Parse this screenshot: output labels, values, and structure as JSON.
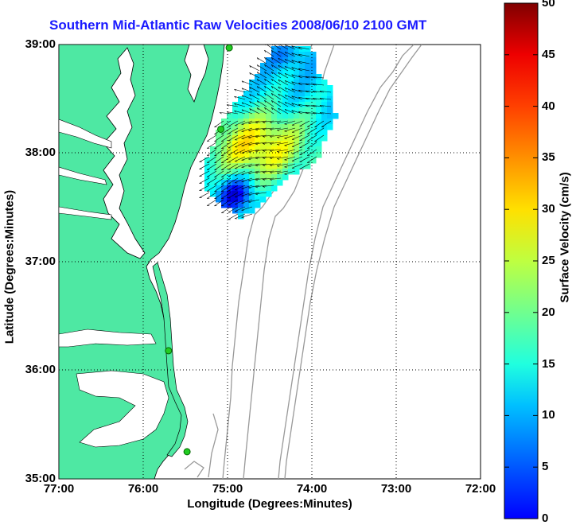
{
  "title": "Southern Mid-Atlantic Raw Velocities 2008/06/10 2100 GMT",
  "xlabel": "Longitude (Degrees:Minutes)",
  "ylabel": "Latitude (Degrees:Minutes)",
  "x_ticks": [
    "77:00",
    "76:00",
    "75:00",
    "74:00",
    "73:00",
    "72:00"
  ],
  "y_ticks": [
    "39:00",
    "38:00",
    "37:00",
    "36:00",
    "35:00"
  ],
  "colorbar": {
    "label": "Surface Velocity (cm/s)",
    "ticks": [
      "0",
      "5",
      "10",
      "15",
      "20",
      "25",
      "30",
      "35",
      "40",
      "45",
      "50"
    ],
    "range": [
      0,
      50
    ],
    "colormap": "jet"
  },
  "colors": {
    "land": "#4ee8a3",
    "sea": "#ffffff",
    "title": "#1a1aff",
    "bathymetry": "#999999",
    "station": "#22cc22"
  },
  "map_extent": {
    "lon": [
      -77,
      -72
    ],
    "lat": [
      35,
      39
    ]
  },
  "grid": true,
  "stations": [
    {
      "lon": -74.98,
      "lat": 38.97
    },
    {
      "lon": -75.08,
      "lat": 38.22
    },
    {
      "lon": -75.7,
      "lat": 36.18
    },
    {
      "lon": -75.48,
      "lat": 35.25
    }
  ],
  "velocity_field": {
    "region_note": "",
    "range_cm_s": [
      0,
      50
    ]
  }
}
